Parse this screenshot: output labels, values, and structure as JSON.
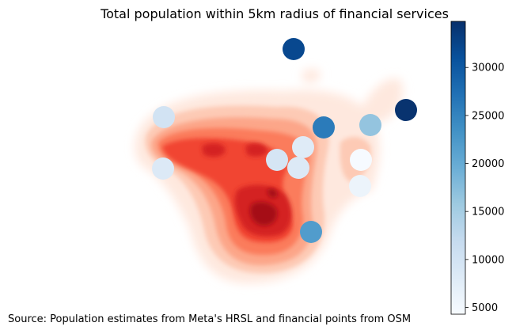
{
  "title": "Total population within 5km radius of financial services",
  "source": "Source: Population estimates from Meta's HRSL and financial points from OSM",
  "colorbar": {
    "min": 4300,
    "max": 34800,
    "ticks": [
      "5000",
      "10000",
      "15000",
      "20000",
      "25000",
      "30000"
    ],
    "tick_values": [
      5000,
      10000,
      15000,
      20000,
      25000,
      30000
    ],
    "colormap": "Blues"
  },
  "heatmap": {
    "colormap": "Reds"
  },
  "points": [
    {
      "value": 32000
    },
    {
      "value": 34500
    },
    {
      "value": 10000
    },
    {
      "value": 26000
    },
    {
      "value": 16500
    },
    {
      "value": 8000
    },
    {
      "value": 9500
    },
    {
      "value": 8500
    },
    {
      "value": 8500
    },
    {
      "value": 4500
    },
    {
      "value": 6000
    },
    {
      "value": 22000
    }
  ]
}
